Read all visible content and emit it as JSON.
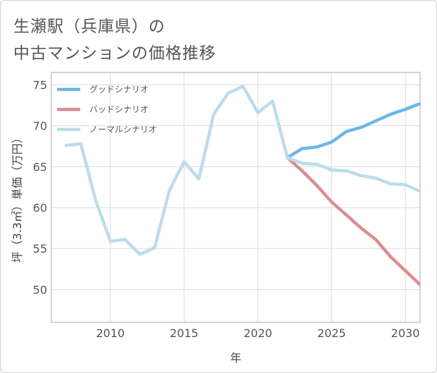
{
  "title": {
    "line1": "生瀬駅（兵庫県）の",
    "line2": "中古マンションの価格推移"
  },
  "chart_data": {
    "type": "line",
    "xlabel": "年",
    "ylabel": "坪（3.3㎡）単価（万円）",
    "xlim": [
      2006,
      2031
    ],
    "ylim": [
      46,
      76.5
    ],
    "xticks": [
      2010,
      2015,
      2020,
      2025,
      2030
    ],
    "yticks": [
      50,
      55,
      60,
      65,
      70,
      75
    ],
    "grid": true,
    "legend_position": "top-left",
    "series": [
      {
        "name": "グッドシナリオ",
        "color": "#6cb6e8",
        "x": [
          2022,
          2023,
          2024,
          2025,
          2026,
          2027,
          2028,
          2029,
          2030,
          2031
        ],
        "values": [
          66.1,
          67.2,
          67.4,
          68.0,
          69.3,
          69.8,
          70.6,
          71.4,
          72.0,
          72.7
        ]
      },
      {
        "name": "バッドシナリオ",
        "color": "#dc8c90",
        "x": [
          2022,
          2023,
          2024,
          2025,
          2026,
          2027,
          2028,
          2029,
          2030,
          2031
        ],
        "values": [
          66.1,
          64.5,
          62.7,
          60.7,
          59.1,
          57.5,
          56.1,
          54.0,
          52.3,
          50.6
        ]
      },
      {
        "name": "ノーマルシナリオ",
        "color": "#bcdcea",
        "x": [
          2007,
          2008,
          2009,
          2010,
          2011,
          2012,
          2013,
          2014,
          2015,
          2016,
          2017,
          2018,
          2019,
          2020,
          2021,
          2022,
          2023,
          2024,
          2025,
          2026,
          2027,
          2028,
          2029,
          2030,
          2031
        ],
        "values": [
          67.6,
          67.8,
          60.9,
          55.9,
          56.1,
          54.3,
          55.1,
          62.1,
          65.6,
          63.5,
          71.4,
          74.0,
          74.8,
          71.6,
          73.0,
          66.1,
          65.4,
          65.3,
          64.6,
          64.5,
          63.9,
          63.6,
          62.9,
          62.8,
          62.0
        ]
      }
    ]
  }
}
